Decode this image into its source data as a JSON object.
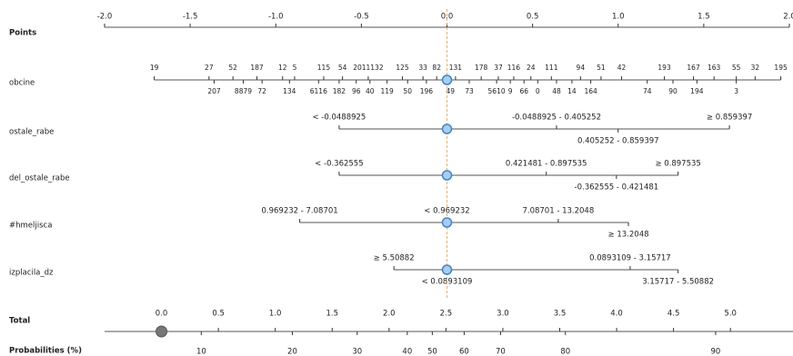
{
  "chart_data": {
    "type": "nomogram",
    "points": {
      "name": "Points",
      "xlim": [
        -2,
        2
      ],
      "xticks": [
        {
          "value": -2,
          "label": "-2.0"
        },
        {
          "value": -1.5,
          "label": "-1.5"
        },
        {
          "value": -1,
          "label": "-1.0"
        },
        {
          "value": -0.5,
          "label": "-0.5"
        },
        {
          "value": 0,
          "label": "0.0"
        },
        {
          "value": 0.5,
          "label": "0.5"
        },
        {
          "value": 1,
          "label": "1.0"
        },
        {
          "value": 1.5,
          "label": "1.5"
        },
        {
          "value": 2,
          "label": "2.0"
        }
      ]
    },
    "variables": [
      {
        "name": "obcine",
        "line": [
          -1.71,
          1.95
        ],
        "marker": 0,
        "levels": [
          {
            "label": "19",
            "points": -1.71,
            "side": "above"
          },
          {
            "label": "27",
            "points": -1.39,
            "side": "above"
          },
          {
            "label": "52",
            "points": -1.25,
            "side": "above"
          },
          {
            "label": "187",
            "points": -1.11,
            "side": "above"
          },
          {
            "label": "12",
            "points": -0.96,
            "side": "above"
          },
          {
            "label": "5",
            "points": -0.89,
            "side": "above"
          },
          {
            "label": "115",
            "points": -0.72,
            "side": "above"
          },
          {
            "label": "54",
            "points": -0.61,
            "side": "above"
          },
          {
            "label": "2011132",
            "points": -0.46,
            "side": "above"
          },
          {
            "label": "125",
            "points": -0.26,
            "side": "above"
          },
          {
            "label": "33",
            "points": -0.14,
            "side": "above"
          },
          {
            "label": "82",
            "points": -0.06,
            "side": "above"
          },
          {
            "label": "131",
            "points": 0.05,
            "side": "above"
          },
          {
            "label": "178",
            "points": 0.2,
            "side": "above"
          },
          {
            "label": "37",
            "points": 0.3,
            "side": "above"
          },
          {
            "label": "116",
            "points": 0.39,
            "side": "above"
          },
          {
            "label": "24",
            "points": 0.49,
            "side": "above"
          },
          {
            "label": "111",
            "points": 0.61,
            "side": "above"
          },
          {
            "label": "94",
            "points": 0.78,
            "side": "above"
          },
          {
            "label": "51",
            "points": 0.9,
            "side": "above"
          },
          {
            "label": "42",
            "points": 1.02,
            "side": "above"
          },
          {
            "label": "193",
            "points": 1.27,
            "side": "above"
          },
          {
            "label": "167",
            "points": 1.44,
            "side": "above"
          },
          {
            "label": "163",
            "points": 1.56,
            "side": "above"
          },
          {
            "label": "55",
            "points": 1.69,
            "side": "above"
          },
          {
            "label": "32",
            "points": 1.8,
            "side": "above"
          },
          {
            "label": "195",
            "points": 1.95,
            "side": "above"
          },
          {
            "label": "207",
            "points": -1.36,
            "side": "below"
          },
          {
            "label": "8879",
            "points": -1.19,
            "side": "below"
          },
          {
            "label": "72",
            "points": -1.08,
            "side": "below"
          },
          {
            "label": "134",
            "points": -0.92,
            "side": "below"
          },
          {
            "label": "6116",
            "points": -0.75,
            "side": "below"
          },
          {
            "label": "182",
            "points": -0.63,
            "side": "below"
          },
          {
            "label": "96",
            "points": -0.53,
            "side": "below"
          },
          {
            "label": "40",
            "points": -0.45,
            "side": "below"
          },
          {
            "label": "119",
            "points": -0.35,
            "side": "below"
          },
          {
            "label": "50",
            "points": -0.23,
            "side": "below"
          },
          {
            "label": "196",
            "points": -0.12,
            "side": "below"
          },
          {
            "label": "49",
            "points": 0.02,
            "side": "below"
          },
          {
            "label": "73",
            "points": 0.13,
            "side": "below"
          },
          {
            "label": "5610",
            "points": 0.29,
            "side": "below"
          },
          {
            "label": "9",
            "points": 0.37,
            "side": "below"
          },
          {
            "label": "66",
            "points": 0.45,
            "side": "below"
          },
          {
            "label": "0",
            "points": 0.53,
            "side": "below"
          },
          {
            "label": "48",
            "points": 0.64,
            "side": "below"
          },
          {
            "label": "14",
            "points": 0.73,
            "side": "below"
          },
          {
            "label": "164",
            "points": 0.84,
            "side": "below"
          },
          {
            "label": "74",
            "points": 1.17,
            "side": "below"
          },
          {
            "label": "90",
            "points": 1.32,
            "side": "below"
          },
          {
            "label": "194",
            "points": 1.46,
            "side": "below"
          },
          {
            "label": "3",
            "points": 1.69,
            "side": "below"
          }
        ]
      },
      {
        "name": "ostale_rabe",
        "line": [
          -0.63,
          1.65
        ],
        "marker": 0,
        "levels": [
          {
            "label": "< -0.0488925",
            "points": -0.63,
            "side": "above"
          },
          {
            "label": "-0.0488925 - 0.405252",
            "points": 0.64,
            "side": "above"
          },
          {
            "label": "0.405252 - 0.859397",
            "points": 1.0,
            "side": "below"
          },
          {
            "label": "≥ 0.859397",
            "points": 1.65,
            "side": "above"
          }
        ]
      },
      {
        "name": "del_ostale_rabe",
        "line": [
          -0.63,
          1.35
        ],
        "marker": 0,
        "levels": [
          {
            "label": "< -0.362555",
            "points": -0.63,
            "side": "above"
          },
          {
            "label": "0.421481 - 0.897535",
            "points": 0.58,
            "side": "above"
          },
          {
            "label": "≥ 0.897535",
            "points": 1.35,
            "side": "above"
          },
          {
            "label": "-0.362555 - 0.421481",
            "points": 0.99,
            "side": "below"
          }
        ]
      },
      {
        "name": "#hmeljisca",
        "line": [
          -0.86,
          1.06
        ],
        "marker": 0,
        "levels": [
          {
            "label": "0.969232 - 7.08701",
            "points": -0.86,
            "side": "above"
          },
          {
            "label": "< 0.969232",
            "points": 0,
            "side": "above"
          },
          {
            "label": "7.08701 - 13.2048",
            "points": 0.65,
            "side": "above"
          },
          {
            "label": "≥ 13.2048",
            "points": 1.06,
            "side": "below"
          }
        ]
      },
      {
        "name": "izplacila_dz",
        "line": [
          -0.31,
          1.35
        ],
        "marker": 0,
        "levels": [
          {
            "label": "≥ 5.50882",
            "points": -0.31,
            "side": "above"
          },
          {
            "label": "< 0.0893109",
            "points": 0,
            "side": "below"
          },
          {
            "label": "0.0893109 - 3.15717",
            "points": 1.07,
            "side": "above"
          },
          {
            "label": "3.15717 - 5.50882",
            "points": 1.35,
            "side": "below"
          }
        ]
      }
    ],
    "total": {
      "name": "Total",
      "xlim": [
        -0.5,
        5.55
      ],
      "marker": 0,
      "xticks": [
        {
          "value": 0,
          "label": "0.0"
        },
        {
          "value": 0.5,
          "label": "0.5"
        },
        {
          "value": 1,
          "label": "1.0"
        },
        {
          "value": 1.5,
          "label": "1.5"
        },
        {
          "value": 2,
          "label": "2.0"
        },
        {
          "value": 2.5,
          "label": "2.5"
        },
        {
          "value": 3,
          "label": "3.0"
        },
        {
          "value": 3.5,
          "label": "3.5"
        },
        {
          "value": 4,
          "label": "4.0"
        },
        {
          "value": 4.5,
          "label": "4.5"
        },
        {
          "value": 5,
          "label": "5.0"
        }
      ]
    },
    "probabilities": {
      "name": "Probabilities (%)",
      "ticks": [
        {
          "value": 10,
          "total": 0.35
        },
        {
          "value": 20,
          "total": 1.15
        },
        {
          "value": 30,
          "total": 1.72
        },
        {
          "value": 40,
          "total": 2.16
        },
        {
          "value": 50,
          "total": 2.38
        },
        {
          "value": 60,
          "total": 2.66
        },
        {
          "value": 70,
          "total": 2.98
        },
        {
          "value": 80,
          "total": 3.55
        },
        {
          "value": 90,
          "total": 4.87
        }
      ]
    }
  }
}
